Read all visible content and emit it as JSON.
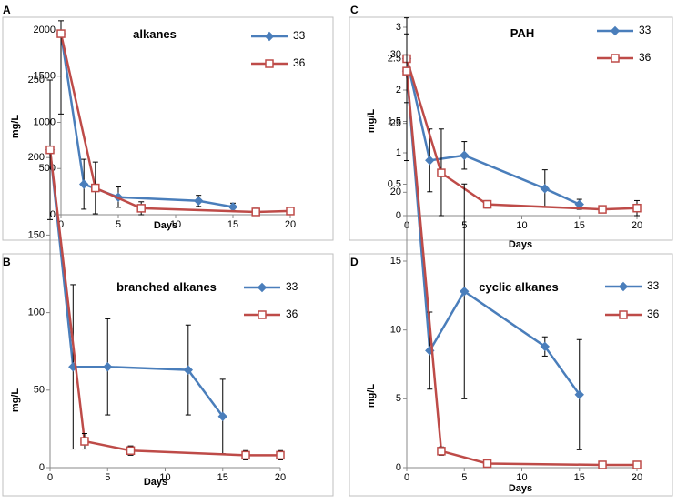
{
  "series_colors": {
    "33": "#4a7ebb",
    "36": "#be4b48"
  },
  "chart_data": [
    {
      "panel": "A",
      "type": "line",
      "title": "alkanes",
      "xlabel": "Days",
      "ylabel": "mg/L",
      "xlim": [
        0,
        20
      ],
      "ylim": [
        0,
        2000
      ],
      "xticks": [
        0,
        5,
        10,
        15,
        20
      ],
      "yticks": [
        0,
        500,
        1000,
        1500,
        2000
      ],
      "series": [
        {
          "name": "33",
          "marker": "diamond",
          "x": [
            0,
            2,
            5,
            12,
            15
          ],
          "y": [
            1960,
            330,
            190,
            150,
            85
          ],
          "err": [
            0,
            270,
            110,
            60,
            40
          ]
        },
        {
          "name": "36",
          "marker": "square",
          "x": [
            0,
            3,
            7,
            17,
            20
          ],
          "y": [
            1960,
            290,
            70,
            30,
            40
          ],
          "err": [
            870,
            280,
            70,
            40,
            40
          ]
        }
      ]
    },
    {
      "panel": "C",
      "type": "line",
      "title": "PAH",
      "xlabel": "Days",
      "ylabel": "mg/L",
      "xlim": [
        0,
        20
      ],
      "ylim": [
        0,
        3
      ],
      "xticks": [
        0,
        5,
        10,
        15,
        20
      ],
      "yticks": [
        0,
        0.5,
        1,
        1.5,
        2,
        2.5,
        3
      ],
      "series": [
        {
          "name": "33",
          "marker": "diamond",
          "x": [
            0,
            2,
            5,
            12,
            15
          ],
          "y": [
            2.5,
            0.88,
            0.96,
            0.43,
            0.18
          ],
          "err": [
            0,
            0.5,
            0.22,
            0.3,
            0.08
          ]
        },
        {
          "name": "36",
          "marker": "square",
          "x": [
            0,
            3,
            7,
            17,
            20
          ],
          "y": [
            2.5,
            0.68,
            0.18,
            0.1,
            0.12
          ],
          "err": [
            0.7,
            0.7,
            0.06,
            0.04,
            0.12
          ]
        }
      ]
    },
    {
      "panel": "B",
      "type": "line",
      "title": "branched alkanes",
      "xlabel": "Days",
      "ylabel": "mg/L",
      "xlim": [
        0,
        20
      ],
      "ylim": [
        0,
        250
      ],
      "xticks": [
        0,
        5,
        10,
        15,
        20
      ],
      "yticks": [
        0,
        50,
        100,
        150,
        200,
        250
      ],
      "series": [
        {
          "name": "33",
          "marker": "diamond",
          "x": [
            0,
            2,
            5,
            12,
            15
          ],
          "y": [
            205,
            65,
            65,
            63,
            33
          ],
          "err": [
            0,
            53,
            31,
            29,
            24
          ]
        },
        {
          "name": "36",
          "marker": "square",
          "x": [
            0,
            3,
            7,
            17,
            20
          ],
          "y": [
            205,
            17,
            11,
            8,
            8
          ],
          "err": [
            45,
            5,
            3,
            3,
            3
          ]
        }
      ]
    },
    {
      "panel": "D",
      "type": "line",
      "title": "cyclic alkanes",
      "xlabel": "Days",
      "ylabel": "mg/L",
      "xlim": [
        0,
        20
      ],
      "ylim": [
        0,
        30
      ],
      "xticks": [
        0,
        5,
        10,
        15,
        20
      ],
      "yticks": [
        0,
        5,
        10,
        15,
        20,
        25,
        30
      ],
      "series": [
        {
          "name": "33",
          "marker": "diamond",
          "x": [
            0,
            2,
            5,
            12,
            15
          ],
          "y": [
            28.8,
            8.5,
            12.8,
            8.8,
            5.3
          ],
          "err": [
            0,
            2.8,
            7.8,
            0.7,
            4.0
          ]
        },
        {
          "name": "36",
          "marker": "square",
          "x": [
            0,
            3,
            7,
            17,
            20
          ],
          "y": [
            28.8,
            1.2,
            0.3,
            0.2,
            0.2
          ],
          "err": [
            6.5,
            0.3,
            0.1,
            0.1,
            0.1
          ]
        }
      ]
    }
  ]
}
